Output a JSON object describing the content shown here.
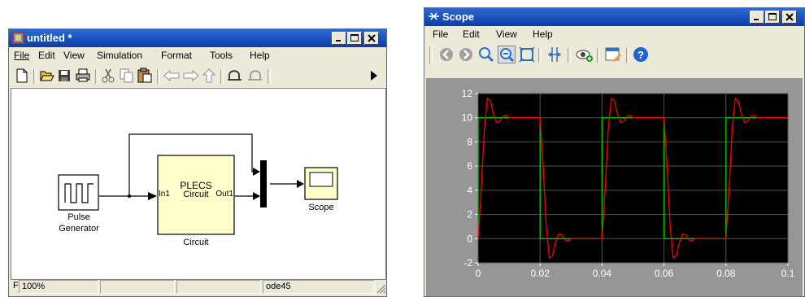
{
  "model_window": {
    "title": "untitled *",
    "menu": [
      "File",
      "Edit",
      "View",
      "Simulation",
      "Format",
      "Tools",
      "Help"
    ],
    "blocks": {
      "pulse_label": "Pulse",
      "pulse_label2": "Generator",
      "circuit_title": "PLECS",
      "circuit_sub": "Circuit",
      "circuit_in": "In1",
      "circuit_out": "Out1",
      "circuit_name": "Circuit",
      "scope_label": "Scope"
    },
    "status": {
      "first": "F",
      "zoom": "100%",
      "solver": "ode45"
    }
  },
  "scope_window": {
    "title": "Scope",
    "menu": [
      "File",
      "Edit",
      "View",
      "Help"
    ]
  },
  "colors": {
    "title_bar": "#0b3da8",
    "plot_bg": "#000000",
    "pulse_series": "#00cc00",
    "response_series": "#ff0000",
    "block_fill": "#ffffcc"
  },
  "chart_data": {
    "type": "line",
    "xlim": [
      0,
      0.1
    ],
    "ylim": [
      -2,
      12
    ],
    "x_ticks": [
      "0",
      "0.02",
      "0.04",
      "0.06",
      "0.08",
      "0.1"
    ],
    "y_ticks": [
      "-2",
      "0",
      "2",
      "4",
      "6",
      "8",
      "10",
      "12"
    ],
    "grid": true,
    "series": [
      {
        "color": "#00cc00",
        "x": [
          0,
          0,
          0.02,
          0.02,
          0.04,
          0.04,
          0.06,
          0.06,
          0.08,
          0.08,
          0.1
        ],
        "y": [
          0,
          10,
          10,
          0,
          0,
          10,
          10,
          0,
          0,
          10,
          10
        ]
      },
      {
        "color": "#ff0000",
        "x": [
          0,
          0.001,
          0.002,
          0.003,
          0.004,
          0.005,
          0.006,
          0.007,
          0.008,
          0.009,
          0.01,
          0.012,
          0.02,
          0.021,
          0.022,
          0.023,
          0.024,
          0.025,
          0.026,
          0.027,
          0.028,
          0.029,
          0.03,
          0.032,
          0.04,
          0.041,
          0.042,
          0.043,
          0.044,
          0.045,
          0.046,
          0.047,
          0.048,
          0.049,
          0.05,
          0.052,
          0.06,
          0.061,
          0.062,
          0.063,
          0.064,
          0.065,
          0.066,
          0.067,
          0.068,
          0.069,
          0.07,
          0.072,
          0.08,
          0.081,
          0.082,
          0.083,
          0.084,
          0.085,
          0.086,
          0.087,
          0.088,
          0.089,
          0.09,
          0.092,
          0.1
        ],
        "y": [
          0,
          4,
          9,
          11.6,
          11.4,
          10.3,
          9.6,
          9.7,
          10.1,
          10.2,
          10,
          10,
          10,
          6,
          1,
          -1.6,
          -1.4,
          -0.3,
          0.4,
          0.3,
          -0.1,
          -0.2,
          0,
          0,
          0,
          4,
          9,
          11.6,
          11.4,
          10.3,
          9.6,
          9.7,
          10.1,
          10.2,
          10,
          10,
          10,
          6,
          1,
          -1.6,
          -1.4,
          -0.3,
          0.4,
          0.3,
          -0.1,
          -0.2,
          0,
          0,
          0,
          4,
          9,
          11.6,
          11.4,
          10.3,
          9.6,
          9.7,
          10.1,
          10.2,
          10,
          10,
          10
        ]
      }
    ]
  }
}
